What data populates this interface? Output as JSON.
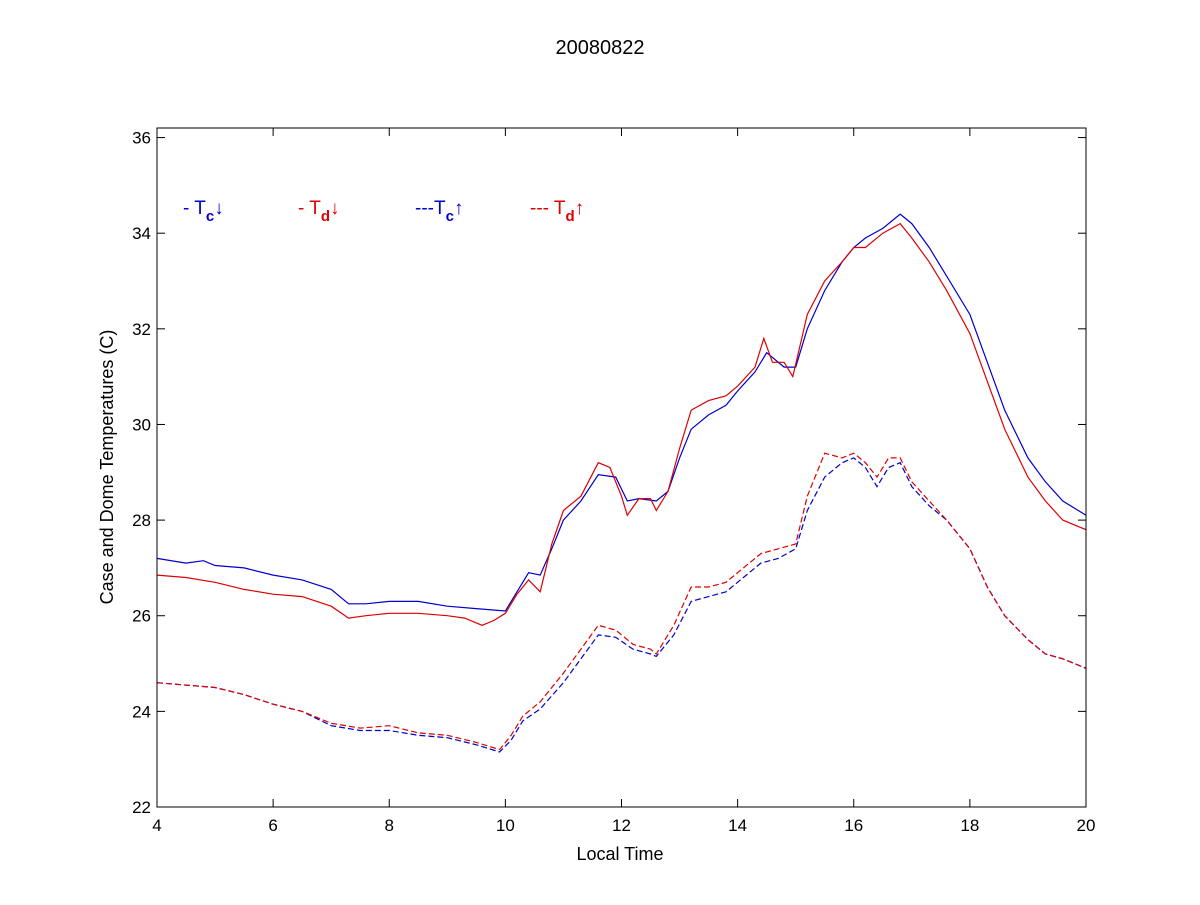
{
  "chart_data": {
    "type": "line",
    "title": "20080822",
    "xlabel": "Local Time",
    "ylabel": "Case and Dome Temperatures (C)",
    "xlim": [
      4,
      20
    ],
    "ylim": [
      22,
      36.2
    ],
    "xticks": [
      4,
      6,
      8,
      10,
      12,
      14,
      16,
      18,
      20
    ],
    "yticks": [
      22,
      24,
      26,
      28,
      30,
      32,
      34,
      36
    ],
    "grid": false,
    "legend": [
      {
        "prefix": "- ",
        "symbol": "T",
        "sub": "c",
        "arrow": "↓",
        "color": "#0000cc"
      },
      {
        "prefix": "- ",
        "symbol": "T",
        "sub": "d",
        "arrow": "↓",
        "color": "#dd0000"
      },
      {
        "prefix": "---",
        "symbol": "T",
        "sub": "c",
        "arrow": "↑",
        "color": "#0000cc"
      },
      {
        "prefix": "--- ",
        "symbol": "T",
        "sub": "d",
        "arrow": "↑",
        "color": "#dd0000"
      }
    ],
    "series": [
      {
        "color": "#0000cc",
        "dash": false,
        "points": [
          [
            4.0,
            27.2
          ],
          [
            4.5,
            27.1
          ],
          [
            4.8,
            27.15
          ],
          [
            5.0,
            27.05
          ],
          [
            5.5,
            27.0
          ],
          [
            6.0,
            26.85
          ],
          [
            6.5,
            26.75
          ],
          [
            7.0,
            26.55
          ],
          [
            7.3,
            26.25
          ],
          [
            7.6,
            26.25
          ],
          [
            8.0,
            26.3
          ],
          [
            8.5,
            26.3
          ],
          [
            9.0,
            26.2
          ],
          [
            9.5,
            26.15
          ],
          [
            10.0,
            26.1
          ],
          [
            10.2,
            26.5
          ],
          [
            10.4,
            26.9
          ],
          [
            10.6,
            26.85
          ],
          [
            10.8,
            27.4
          ],
          [
            11.0,
            28.0
          ],
          [
            11.3,
            28.4
          ],
          [
            11.6,
            28.95
          ],
          [
            11.9,
            28.9
          ],
          [
            12.1,
            28.4
          ],
          [
            12.3,
            28.45
          ],
          [
            12.6,
            28.4
          ],
          [
            12.8,
            28.6
          ],
          [
            13.0,
            29.3
          ],
          [
            13.2,
            29.9
          ],
          [
            13.5,
            30.2
          ],
          [
            13.8,
            30.4
          ],
          [
            14.0,
            30.7
          ],
          [
            14.3,
            31.1
          ],
          [
            14.5,
            31.5
          ],
          [
            14.8,
            31.2
          ],
          [
            15.0,
            31.2
          ],
          [
            15.2,
            32.0
          ],
          [
            15.5,
            32.8
          ],
          [
            15.8,
            33.4
          ],
          [
            16.0,
            33.7
          ],
          [
            16.2,
            33.9
          ],
          [
            16.5,
            34.1
          ],
          [
            16.8,
            34.4
          ],
          [
            17.0,
            34.2
          ],
          [
            17.3,
            33.7
          ],
          [
            17.6,
            33.1
          ],
          [
            18.0,
            32.3
          ],
          [
            18.3,
            31.3
          ],
          [
            18.6,
            30.3
          ],
          [
            19.0,
            29.3
          ],
          [
            19.3,
            28.8
          ],
          [
            19.6,
            28.4
          ],
          [
            20.0,
            28.1
          ]
        ]
      },
      {
        "color": "#dd0000",
        "dash": false,
        "points": [
          [
            4.0,
            26.85
          ],
          [
            4.5,
            26.8
          ],
          [
            5.0,
            26.7
          ],
          [
            5.5,
            26.55
          ],
          [
            6.0,
            26.45
          ],
          [
            6.5,
            26.4
          ],
          [
            7.0,
            26.2
          ],
          [
            7.3,
            25.95
          ],
          [
            7.6,
            26.0
          ],
          [
            8.0,
            26.05
          ],
          [
            8.5,
            26.05
          ],
          [
            9.0,
            26.0
          ],
          [
            9.3,
            25.95
          ],
          [
            9.6,
            25.8
          ],
          [
            9.8,
            25.9
          ],
          [
            10.0,
            26.05
          ],
          [
            10.2,
            26.45
          ],
          [
            10.4,
            26.75
          ],
          [
            10.6,
            26.5
          ],
          [
            10.8,
            27.5
          ],
          [
            11.0,
            28.2
          ],
          [
            11.3,
            28.5
          ],
          [
            11.6,
            29.2
          ],
          [
            11.8,
            29.1
          ],
          [
            12.0,
            28.5
          ],
          [
            12.1,
            28.1
          ],
          [
            12.3,
            28.45
          ],
          [
            12.5,
            28.45
          ],
          [
            12.6,
            28.2
          ],
          [
            12.8,
            28.6
          ],
          [
            13.0,
            29.5
          ],
          [
            13.2,
            30.3
          ],
          [
            13.5,
            30.5
          ],
          [
            13.8,
            30.6
          ],
          [
            14.0,
            30.8
          ],
          [
            14.3,
            31.2
          ],
          [
            14.45,
            31.8
          ],
          [
            14.6,
            31.3
          ],
          [
            14.8,
            31.3
          ],
          [
            14.95,
            31.0
          ],
          [
            15.2,
            32.3
          ],
          [
            15.5,
            33.0
          ],
          [
            15.8,
            33.4
          ],
          [
            16.0,
            33.7
          ],
          [
            16.2,
            33.7
          ],
          [
            16.5,
            34.0
          ],
          [
            16.8,
            34.2
          ],
          [
            17.0,
            33.9
          ],
          [
            17.3,
            33.4
          ],
          [
            17.6,
            32.8
          ],
          [
            18.0,
            31.9
          ],
          [
            18.3,
            30.9
          ],
          [
            18.6,
            29.9
          ],
          [
            19.0,
            28.9
          ],
          [
            19.3,
            28.4
          ],
          [
            19.6,
            28.0
          ],
          [
            20.0,
            27.8
          ]
        ]
      },
      {
        "color": "#0000cc",
        "dash": true,
        "points": [
          [
            4.0,
            24.6
          ],
          [
            4.5,
            24.55
          ],
          [
            5.0,
            24.5
          ],
          [
            5.5,
            24.35
          ],
          [
            6.0,
            24.15
          ],
          [
            6.5,
            24.0
          ],
          [
            7.0,
            23.7
          ],
          [
            7.5,
            23.6
          ],
          [
            8.0,
            23.6
          ],
          [
            8.5,
            23.5
          ],
          [
            9.0,
            23.45
          ],
          [
            9.5,
            23.3
          ],
          [
            9.9,
            23.15
          ],
          [
            10.1,
            23.4
          ],
          [
            10.3,
            23.8
          ],
          [
            10.6,
            24.05
          ],
          [
            11.0,
            24.6
          ],
          [
            11.3,
            25.1
          ],
          [
            11.6,
            25.6
          ],
          [
            11.9,
            25.55
          ],
          [
            12.2,
            25.3
          ],
          [
            12.5,
            25.2
          ],
          [
            12.6,
            25.15
          ],
          [
            12.9,
            25.6
          ],
          [
            13.2,
            26.3
          ],
          [
            13.5,
            26.4
          ],
          [
            13.8,
            26.5
          ],
          [
            14.1,
            26.8
          ],
          [
            14.4,
            27.1
          ],
          [
            14.7,
            27.2
          ],
          [
            15.0,
            27.4
          ],
          [
            15.2,
            28.2
          ],
          [
            15.5,
            28.9
          ],
          [
            15.8,
            29.2
          ],
          [
            16.0,
            29.3
          ],
          [
            16.2,
            29.1
          ],
          [
            16.4,
            28.7
          ],
          [
            16.6,
            29.1
          ],
          [
            16.8,
            29.2
          ],
          [
            17.0,
            28.7
          ],
          [
            17.3,
            28.3
          ],
          [
            17.6,
            28.0
          ],
          [
            18.0,
            27.4
          ],
          [
            18.3,
            26.6
          ],
          [
            18.6,
            26.0
          ],
          [
            19.0,
            25.5
          ],
          [
            19.3,
            25.2
          ],
          [
            19.6,
            25.1
          ],
          [
            20.0,
            24.9
          ]
        ]
      },
      {
        "color": "#dd0000",
        "dash": true,
        "points": [
          [
            4.0,
            24.6
          ],
          [
            4.5,
            24.55
          ],
          [
            5.0,
            24.5
          ],
          [
            5.5,
            24.35
          ],
          [
            6.0,
            24.15
          ],
          [
            6.5,
            24.0
          ],
          [
            7.0,
            23.75
          ],
          [
            7.5,
            23.65
          ],
          [
            8.0,
            23.7
          ],
          [
            8.5,
            23.55
          ],
          [
            9.0,
            23.5
          ],
          [
            9.5,
            23.35
          ],
          [
            9.9,
            23.2
          ],
          [
            10.1,
            23.5
          ],
          [
            10.3,
            23.9
          ],
          [
            10.6,
            24.2
          ],
          [
            11.0,
            24.8
          ],
          [
            11.3,
            25.3
          ],
          [
            11.6,
            25.8
          ],
          [
            11.9,
            25.7
          ],
          [
            12.2,
            25.4
          ],
          [
            12.5,
            25.3
          ],
          [
            12.6,
            25.2
          ],
          [
            12.9,
            25.8
          ],
          [
            13.2,
            26.6
          ],
          [
            13.5,
            26.6
          ],
          [
            13.8,
            26.7
          ],
          [
            14.1,
            27.0
          ],
          [
            14.4,
            27.3
          ],
          [
            14.7,
            27.4
          ],
          [
            15.0,
            27.5
          ],
          [
            15.2,
            28.5
          ],
          [
            15.5,
            29.4
          ],
          [
            15.8,
            29.3
          ],
          [
            16.0,
            29.4
          ],
          [
            16.2,
            29.2
          ],
          [
            16.4,
            28.9
          ],
          [
            16.6,
            29.3
          ],
          [
            16.8,
            29.3
          ],
          [
            17.0,
            28.8
          ],
          [
            17.3,
            28.4
          ],
          [
            17.6,
            28.0
          ],
          [
            18.0,
            27.4
          ],
          [
            18.3,
            26.6
          ],
          [
            18.6,
            26.0
          ],
          [
            19.0,
            25.5
          ],
          [
            19.3,
            25.2
          ],
          [
            19.6,
            25.1
          ],
          [
            20.0,
            24.9
          ]
        ]
      }
    ]
  }
}
